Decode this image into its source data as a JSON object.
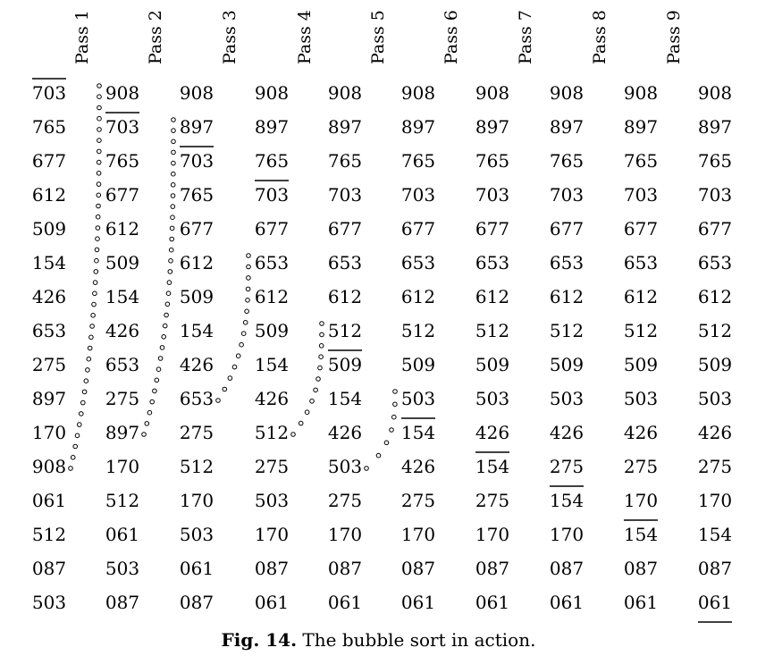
{
  "passes": [
    "Pass 1",
    "Pass 2",
    "Pass 3",
    "Pass 4",
    "Pass 5",
    "Pass 6",
    "Pass 7",
    "Pass 8",
    "Pass 9"
  ],
  "columns": [
    [
      "703",
      "765",
      "677",
      "612",
      "509",
      "154",
      "426",
      "653",
      "275",
      "897",
      "170",
      "908",
      "061",
      "512",
      "087",
      "503"
    ],
    [
      "908",
      "703",
      "765",
      "677",
      "612",
      "509",
      "154",
      "426",
      "653",
      "275",
      "897",
      "170",
      "512",
      "061",
      "503",
      "087"
    ],
    [
      "908",
      "897",
      "703",
      "765",
      "677",
      "612",
      "509",
      "154",
      "426",
      "653",
      "275",
      "512",
      "170",
      "503",
      "061",
      "087"
    ],
    [
      "908",
      "897",
      "765",
      "703",
      "677",
      "653",
      "612",
      "509",
      "154",
      "426",
      "512",
      "275",
      "503",
      "170",
      "087",
      "061"
    ],
    [
      "908",
      "897",
      "765",
      "703",
      "677",
      "653",
      "612",
      "512",
      "509",
      "154",
      "426",
      "503",
      "275",
      "170",
      "087",
      "061"
    ],
    [
      "908",
      "897",
      "765",
      "703",
      "677",
      "653",
      "612",
      "512",
      "509",
      "503",
      "154",
      "426",
      "275",
      "170",
      "087",
      "061"
    ],
    [
      "908",
      "897",
      "765",
      "703",
      "677",
      "653",
      "612",
      "512",
      "509",
      "503",
      "426",
      "154",
      "275",
      "170",
      "087",
      "061"
    ],
    [
      "908",
      "897",
      "765",
      "703",
      "677",
      "653",
      "612",
      "512",
      "509",
      "503",
      "426",
      "275",
      "154",
      "170",
      "087",
      "061"
    ],
    [
      "908",
      "897",
      "765",
      "703",
      "677",
      "653",
      "612",
      "512",
      "509",
      "503",
      "426",
      "275",
      "170",
      "154",
      "087",
      "061"
    ],
    [
      "908",
      "897",
      "765",
      "703",
      "677",
      "653",
      "612",
      "512",
      "509",
      "503",
      "426",
      "275",
      "170",
      "154",
      "087",
      "061"
    ]
  ],
  "sorted_boundary_rows": [
    0,
    1,
    2,
    3,
    8,
    10,
    11,
    12,
    13,
    16
  ],
  "caption": {
    "label": "Fig. 14.",
    "text": " The bubble sort in action."
  }
}
